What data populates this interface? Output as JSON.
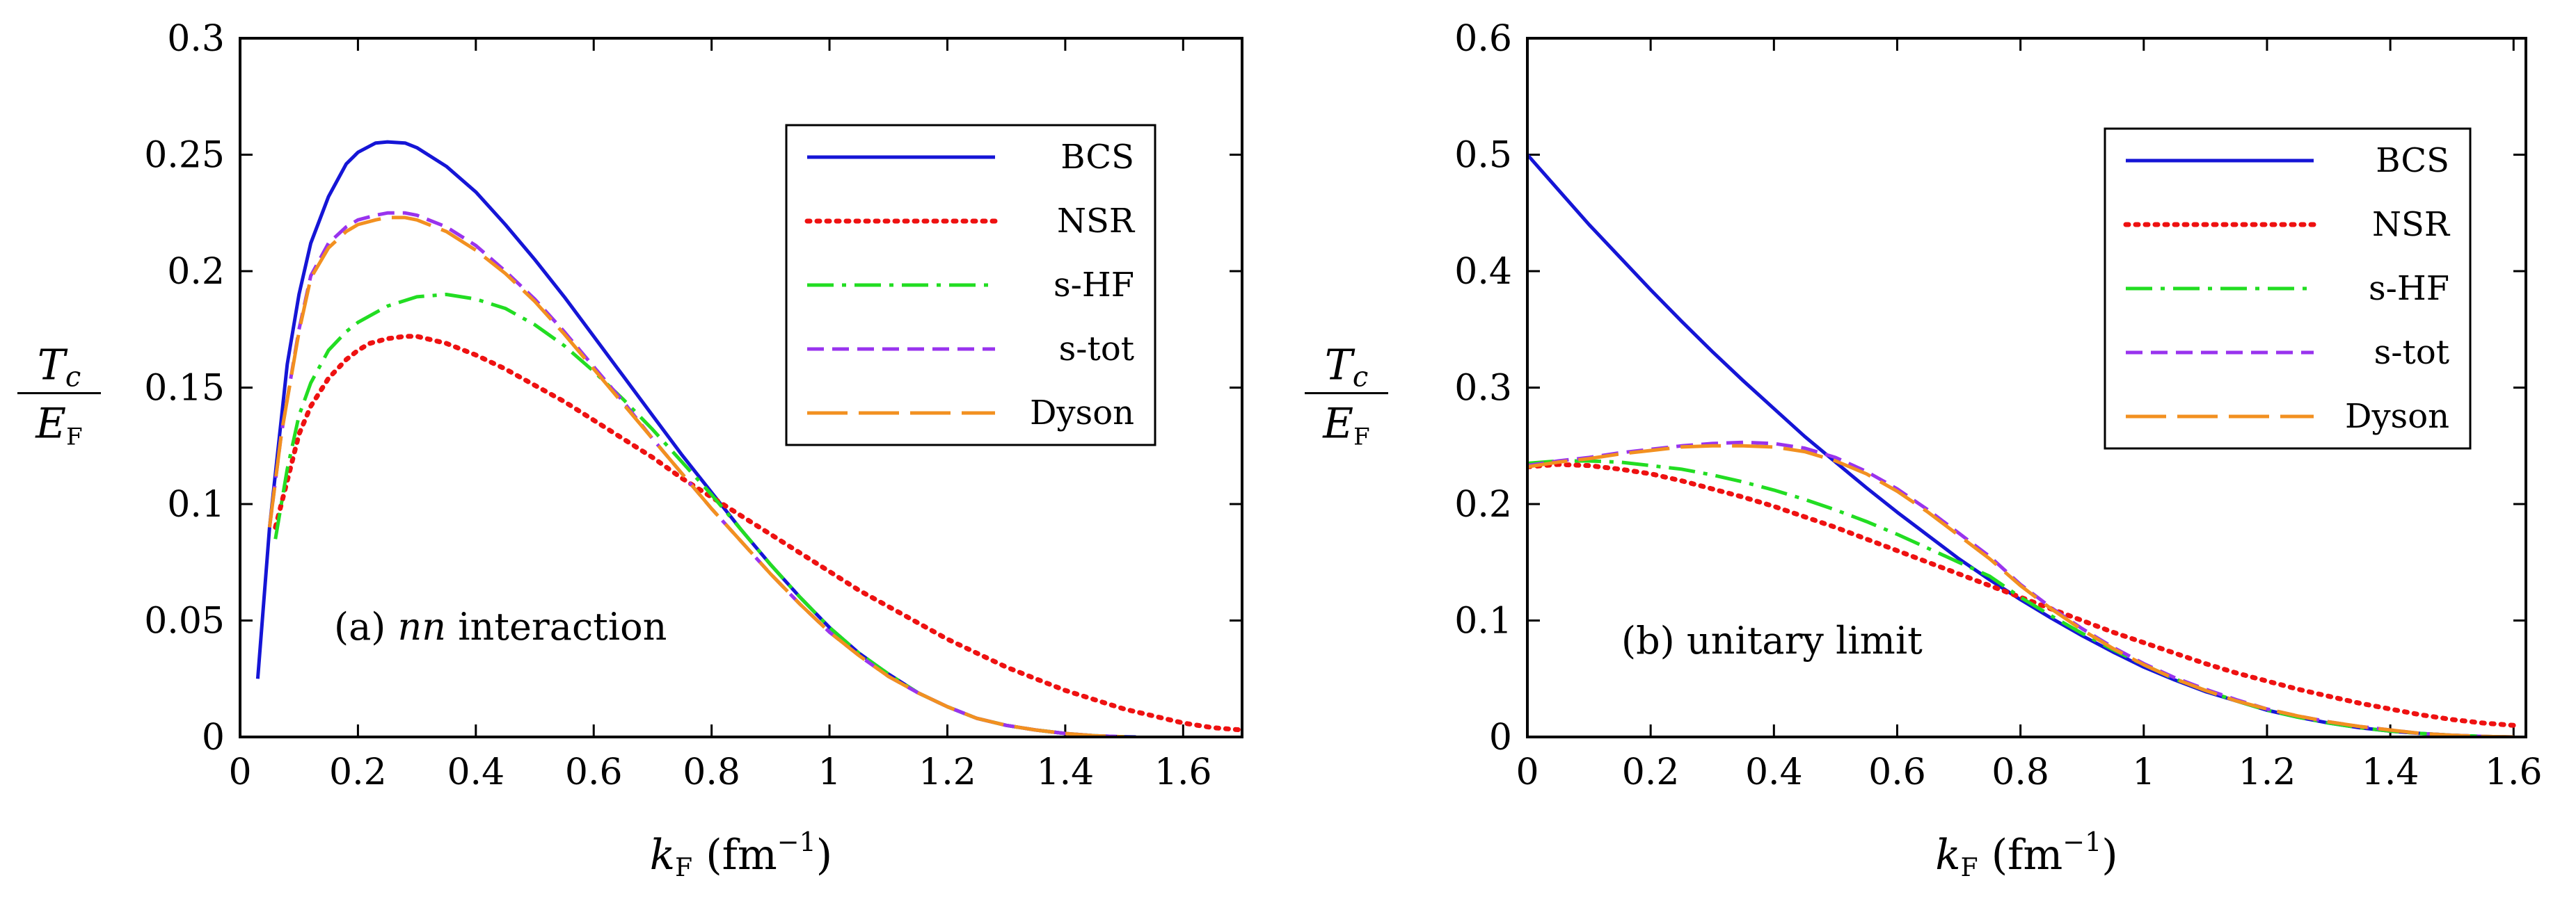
{
  "chart_data": [
    {
      "type": "line",
      "annotation_prefix": "(a) ",
      "annotation_italic": "nn",
      "annotation_suffix": " interaction",
      "xlabel_main": "k",
      "xlabel_sub": "F",
      "xlabel_unit": "(fm",
      "xlabel_exp": "−1",
      "xlabel_close": ")",
      "ylabel_num_main": "T",
      "ylabel_num_sub": "c",
      "ylabel_den_main": "E",
      "ylabel_den_sub": "F",
      "xlim": [
        0,
        1.7
      ],
      "ylim": [
        0,
        0.3
      ],
      "xticks": [
        0,
        0.2,
        0.4,
        0.6,
        0.8,
        1,
        1.2,
        1.4,
        1.6
      ],
      "xtick_labels": [
        "0",
        "0.2",
        "0.4",
        "0.6",
        "0.8",
        "1",
        "1.2",
        "1.4",
        "1.6"
      ],
      "yticks": [
        0,
        0.05,
        0.1,
        0.15,
        0.2,
        0.25,
        0.3
      ],
      "ytick_labels": [
        "0",
        "0.05",
        "0.1",
        "0.15",
        "0.2",
        "0.25",
        "0.3"
      ],
      "legend_position": "top-right",
      "series": [
        {
          "name": "BCS",
          "color": "#1515d6",
          "dash": "solid",
          "x": [
            0.03,
            0.05,
            0.08,
            0.1,
            0.12,
            0.15,
            0.18,
            0.2,
            0.23,
            0.25,
            0.28,
            0.3,
            0.35,
            0.4,
            0.45,
            0.5,
            0.55,
            0.6,
            0.65,
            0.7,
            0.75,
            0.8,
            0.85,
            0.9,
            0.95,
            1.0,
            1.05,
            1.1,
            1.15,
            1.2,
            1.25,
            1.3,
            1.35,
            1.4,
            1.45,
            1.5,
            1.52
          ],
          "y": [
            0.025,
            0.09,
            0.16,
            0.19,
            0.212,
            0.232,
            0.246,
            0.251,
            0.255,
            0.2555,
            0.255,
            0.253,
            0.245,
            0.234,
            0.22,
            0.205,
            0.189,
            0.172,
            0.155,
            0.138,
            0.121,
            0.105,
            0.089,
            0.074,
            0.06,
            0.047,
            0.036,
            0.027,
            0.019,
            0.013,
            0.008,
            0.005,
            0.003,
            0.0015,
            0.0005,
            0.0001,
            0.0
          ]
        },
        {
          "name": "NSR",
          "color": "#ee1111",
          "dash": "dotted",
          "x": [
            0.06,
            0.08,
            0.1,
            0.12,
            0.15,
            0.18,
            0.2,
            0.22,
            0.25,
            0.28,
            0.3,
            0.35,
            0.4,
            0.45,
            0.5,
            0.55,
            0.6,
            0.65,
            0.7,
            0.75,
            0.8,
            0.85,
            0.9,
            0.95,
            1.0,
            1.05,
            1.1,
            1.15,
            1.2,
            1.25,
            1.3,
            1.35,
            1.4,
            1.45,
            1.5,
            1.55,
            1.6,
            1.65,
            1.7
          ],
          "y": [
            0.09,
            0.11,
            0.13,
            0.142,
            0.154,
            0.162,
            0.166,
            0.169,
            0.171,
            0.172,
            0.172,
            0.169,
            0.164,
            0.158,
            0.151,
            0.144,
            0.136,
            0.128,
            0.12,
            0.111,
            0.103,
            0.095,
            0.087,
            0.079,
            0.071,
            0.063,
            0.056,
            0.049,
            0.042,
            0.036,
            0.03,
            0.025,
            0.02,
            0.016,
            0.012,
            0.009,
            0.006,
            0.004,
            0.003
          ]
        },
        {
          "name": "s-HF",
          "color": "#22dd22",
          "dash": "dashdot",
          "x": [
            0.06,
            0.08,
            0.1,
            0.12,
            0.15,
            0.18,
            0.2,
            0.25,
            0.3,
            0.35,
            0.4,
            0.45,
            0.5,
            0.55,
            0.6,
            0.65,
            0.7,
            0.75,
            0.8,
            0.85,
            0.9,
            0.95,
            1.0,
            1.05,
            1.1,
            1.15,
            1.2,
            1.25,
            1.3,
            1.35,
            1.4,
            1.45,
            1.5
          ],
          "y": [
            0.085,
            0.115,
            0.138,
            0.152,
            0.166,
            0.174,
            0.178,
            0.185,
            0.189,
            0.19,
            0.188,
            0.184,
            0.177,
            0.168,
            0.157,
            0.145,
            0.132,
            0.118,
            0.104,
            0.089,
            0.074,
            0.06,
            0.047,
            0.036,
            0.027,
            0.019,
            0.013,
            0.008,
            0.005,
            0.003,
            0.0015,
            0.0005,
            0.0001
          ]
        },
        {
          "name": "s-tot",
          "color": "#9933ee",
          "dash": "dashed",
          "x": [
            0.05,
            0.07,
            0.1,
            0.12,
            0.15,
            0.18,
            0.2,
            0.23,
            0.25,
            0.28,
            0.3,
            0.35,
            0.4,
            0.45,
            0.5,
            0.55,
            0.6,
            0.65,
            0.7,
            0.75,
            0.8,
            0.85,
            0.9,
            0.95,
            1.0,
            1.05,
            1.1,
            1.15,
            1.2,
            1.25,
            1.3,
            1.35,
            1.4,
            1.45,
            1.5
          ],
          "y": [
            0.09,
            0.13,
            0.175,
            0.198,
            0.212,
            0.219,
            0.222,
            0.224,
            0.225,
            0.225,
            0.224,
            0.219,
            0.211,
            0.2,
            0.188,
            0.174,
            0.159,
            0.144,
            0.128,
            0.113,
            0.098,
            0.084,
            0.07,
            0.057,
            0.045,
            0.035,
            0.026,
            0.019,
            0.013,
            0.008,
            0.005,
            0.003,
            0.0015,
            0.0005,
            0.0001
          ]
        },
        {
          "name": "Dyson",
          "color": "#f29020",
          "dash": "longdash",
          "x": [
            0.05,
            0.07,
            0.1,
            0.12,
            0.15,
            0.18,
            0.2,
            0.23,
            0.25,
            0.28,
            0.3,
            0.35,
            0.4,
            0.45,
            0.5,
            0.55,
            0.6,
            0.65,
            0.7,
            0.75,
            0.8,
            0.85,
            0.9,
            0.95,
            1.0,
            1.05,
            1.1,
            1.15,
            1.2,
            1.25,
            1.3,
            1.35,
            1.4,
            1.45,
            1.5
          ],
          "y": [
            0.09,
            0.13,
            0.174,
            0.197,
            0.21,
            0.217,
            0.22,
            0.222,
            0.223,
            0.223,
            0.222,
            0.217,
            0.209,
            0.199,
            0.187,
            0.173,
            0.158,
            0.143,
            0.128,
            0.113,
            0.098,
            0.084,
            0.07,
            0.057,
            0.045,
            0.035,
            0.026,
            0.019,
            0.013,
            0.008,
            0.005,
            0.003,
            0.0015,
            0.0005,
            0.0001
          ]
        }
      ]
    },
    {
      "type": "line",
      "annotation_prefix": "(b) unitary limit",
      "annotation_italic": "",
      "annotation_suffix": "",
      "xlabel_main": "k",
      "xlabel_sub": "F",
      "xlabel_unit": "(fm",
      "xlabel_exp": "−1",
      "xlabel_close": ")",
      "ylabel_num_main": "T",
      "ylabel_num_sub": "c",
      "ylabel_den_main": "E",
      "ylabel_den_sub": "F",
      "xlim": [
        0,
        1.62
      ],
      "ylim": [
        0,
        0.6
      ],
      "xticks": [
        0,
        0.2,
        0.4,
        0.6,
        0.8,
        1,
        1.2,
        1.4,
        1.6
      ],
      "xtick_labels": [
        "0",
        "0.2",
        "0.4",
        "0.6",
        "0.8",
        "1",
        "1.2",
        "1.4",
        "1.6"
      ],
      "yticks": [
        0,
        0.1,
        0.2,
        0.3,
        0.4,
        0.5,
        0.6
      ],
      "ytick_labels": [
        "0",
        "0.1",
        "0.2",
        "0.3",
        "0.4",
        "0.5",
        "0.6"
      ],
      "legend_position": "top-right",
      "series": [
        {
          "name": "BCS",
          "color": "#1515d6",
          "dash": "solid",
          "x": [
            0,
            0.05,
            0.1,
            0.15,
            0.2,
            0.25,
            0.3,
            0.35,
            0.4,
            0.45,
            0.5,
            0.55,
            0.6,
            0.65,
            0.7,
            0.75,
            0.8,
            0.85,
            0.9,
            0.95,
            1.0,
            1.05,
            1.1,
            1.15,
            1.2,
            1.25,
            1.3,
            1.35,
            1.4,
            1.45,
            1.5,
            1.55,
            1.6
          ],
          "y": [
            0.5,
            0.47,
            0.44,
            0.412,
            0.384,
            0.357,
            0.331,
            0.306,
            0.282,
            0.258,
            0.236,
            0.214,
            0.193,
            0.173,
            0.153,
            0.135,
            0.118,
            0.102,
            0.087,
            0.073,
            0.06,
            0.049,
            0.039,
            0.031,
            0.023,
            0.017,
            0.012,
            0.008,
            0.005,
            0.003,
            0.0015,
            0.0005,
            0.0
          ]
        },
        {
          "name": "NSR",
          "color": "#ee1111",
          "dash": "dotted",
          "x": [
            0,
            0.05,
            0.1,
            0.15,
            0.2,
            0.25,
            0.3,
            0.35,
            0.4,
            0.45,
            0.5,
            0.55,
            0.6,
            0.65,
            0.7,
            0.75,
            0.8,
            0.85,
            0.9,
            0.95,
            1.0,
            1.05,
            1.1,
            1.15,
            1.2,
            1.25,
            1.3,
            1.35,
            1.4,
            1.45,
            1.5,
            1.55,
            1.6
          ],
          "y": [
            0.232,
            0.234,
            0.233,
            0.23,
            0.226,
            0.22,
            0.213,
            0.206,
            0.198,
            0.189,
            0.18,
            0.17,
            0.16,
            0.15,
            0.14,
            0.13,
            0.12,
            0.11,
            0.1,
            0.09,
            0.081,
            0.072,
            0.063,
            0.055,
            0.048,
            0.041,
            0.035,
            0.029,
            0.024,
            0.019,
            0.015,
            0.012,
            0.01
          ]
        },
        {
          "name": "s-HF",
          "color": "#22dd22",
          "dash": "dashdot",
          "x": [
            0,
            0.05,
            0.1,
            0.15,
            0.2,
            0.25,
            0.3,
            0.35,
            0.4,
            0.45,
            0.5,
            0.55,
            0.6,
            0.65,
            0.7,
            0.75,
            0.8,
            0.85,
            0.9,
            0.95,
            1.0,
            1.05,
            1.1,
            1.15,
            1.2,
            1.25,
            1.3,
            1.35,
            1.4,
            1.45,
            1.5,
            1.55,
            1.6
          ],
          "y": [
            0.235,
            0.237,
            0.237,
            0.236,
            0.233,
            0.23,
            0.225,
            0.219,
            0.212,
            0.204,
            0.195,
            0.185,
            0.174,
            0.162,
            0.15,
            0.138,
            0.12,
            0.104,
            0.089,
            0.075,
            0.062,
            0.05,
            0.04,
            0.031,
            0.023,
            0.017,
            0.012,
            0.008,
            0.005,
            0.003,
            0.0015,
            0.0005,
            0.0
          ]
        },
        {
          "name": "s-tot",
          "color": "#9933ee",
          "dash": "dashed",
          "x": [
            0,
            0.05,
            0.1,
            0.15,
            0.2,
            0.25,
            0.3,
            0.35,
            0.4,
            0.45,
            0.5,
            0.55,
            0.6,
            0.65,
            0.7,
            0.75,
            0.8,
            0.85,
            0.9,
            0.95,
            1.0,
            1.05,
            1.1,
            1.15,
            1.2,
            1.25,
            1.3,
            1.35,
            1.4,
            1.45,
            1.5,
            1.55,
            1.6
          ],
          "y": [
            0.233,
            0.237,
            0.24,
            0.244,
            0.247,
            0.25,
            0.252,
            0.253,
            0.252,
            0.248,
            0.24,
            0.228,
            0.213,
            0.195,
            0.175,
            0.155,
            0.131,
            0.111,
            0.093,
            0.077,
            0.063,
            0.051,
            0.041,
            0.032,
            0.024,
            0.018,
            0.013,
            0.009,
            0.006,
            0.003,
            0.0015,
            0.0005,
            0.0
          ]
        },
        {
          "name": "Dyson",
          "color": "#f29020",
          "dash": "longdash",
          "x": [
            0,
            0.05,
            0.1,
            0.15,
            0.2,
            0.25,
            0.3,
            0.35,
            0.4,
            0.45,
            0.5,
            0.55,
            0.6,
            0.65,
            0.7,
            0.75,
            0.8,
            0.85,
            0.9,
            0.95,
            1.0,
            1.05,
            1.1,
            1.15,
            1.2,
            1.25,
            1.3,
            1.35,
            1.4,
            1.45,
            1.5,
            1.55,
            1.6
          ],
          "y": [
            0.232,
            0.236,
            0.239,
            0.243,
            0.246,
            0.249,
            0.25,
            0.25,
            0.249,
            0.245,
            0.237,
            0.226,
            0.211,
            0.193,
            0.173,
            0.153,
            0.13,
            0.11,
            0.092,
            0.076,
            0.062,
            0.05,
            0.04,
            0.031,
            0.024,
            0.018,
            0.013,
            0.009,
            0.006,
            0.003,
            0.0015,
            0.0005,
            0.0
          ]
        }
      ]
    }
  ]
}
